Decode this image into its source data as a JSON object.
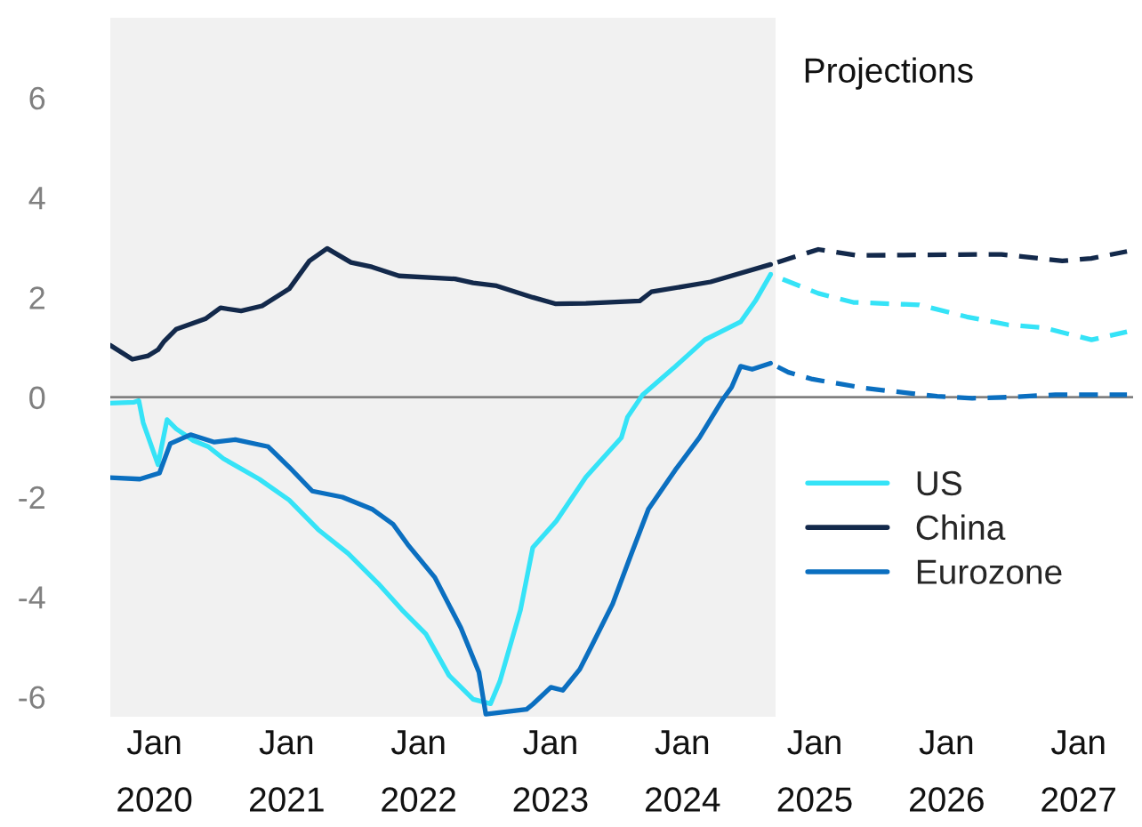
{
  "chart_data": {
    "type": "line",
    "xlim": [
      "2019-09-01",
      "2027-06-01"
    ],
    "xticks": [
      {
        "value": "2020-01-01",
        "label": "Jan\n2020"
      },
      {
        "value": "2021-01-01",
        "label": "Jan\n2021"
      },
      {
        "value": "2022-01-01",
        "label": "Jan\n2022"
      },
      {
        "value": "2023-01-01",
        "label": "Jan\n2023"
      },
      {
        "value": "2024-01-01",
        "label": "Jan\n2024"
      },
      {
        "value": "2025-01-01",
        "label": "Jan\n2025"
      },
      {
        "value": "2026-01-01",
        "label": "Jan\n2026"
      },
      {
        "value": "2027-01-01",
        "label": "Jan\n2027"
      }
    ],
    "ylim": [
      -6.4,
      7.6
    ],
    "yticks": [
      -6,
      -4,
      -2,
      0,
      2,
      4,
      6
    ],
    "series": [
      {
        "name": "US",
        "color": "#35e3f7",
        "line_style": "solid",
        "x": [
          "2019-09-01",
          "2019-11-06",
          "2019-11-19",
          "2019-12-01",
          "2020-01-11",
          "2020-02-05",
          "2020-03-01",
          "2020-04-18",
          "2020-05-29",
          "2020-07-10",
          "2020-10-17",
          "2021-01-08",
          "2021-03-29",
          "2021-06-20",
          "2021-09-11",
          "2021-11-16",
          "2022-01-21",
          "2022-03-26",
          "2022-06-01",
          "2022-07-19",
          "2022-08-14",
          "2022-10-10",
          "2022-11-13",
          "2023-01-17",
          "2023-04-09",
          "2023-07-16",
          "2023-08-02",
          "2023-09-13",
          "2023-12-07",
          "2024-03-03",
          "2024-06-10",
          "2024-07-21",
          "2024-09-01"
        ],
        "values": [
          -0.12,
          -0.1,
          -0.07,
          -0.51,
          -1.35,
          -0.45,
          -0.63,
          -0.87,
          -0.99,
          -1.23,
          -1.64,
          -2.06,
          -2.65,
          -3.13,
          -3.73,
          -4.26,
          -4.74,
          -5.57,
          -6.05,
          -6.14,
          -5.69,
          -4.26,
          -3.01,
          -2.48,
          -1.6,
          -0.81,
          -0.4,
          0.05,
          0.58,
          1.15,
          1.51,
          1.93,
          2.46
        ]
      },
      {
        "name": "China",
        "color": "#13294b",
        "line_style": "solid",
        "x": [
          "2019-09-01",
          "2019-11-01",
          "2019-12-15",
          "2020-01-11",
          "2020-01-28",
          "2020-03-01",
          "2020-05-21",
          "2020-07-02",
          "2020-08-28",
          "2020-10-25",
          "2021-01-08",
          "2021-03-05",
          "2021-04-23",
          "2021-06-28",
          "2021-08-25",
          "2021-11-08",
          "2022-04-12",
          "2022-06-01",
          "2022-08-05",
          "2022-11-13",
          "2023-01-16",
          "2023-04-09",
          "2023-09-05",
          "2023-10-07",
          "2024-03-19",
          "2024-09-01"
        ],
        "values": [
          1.04,
          0.76,
          0.83,
          0.95,
          1.12,
          1.36,
          1.57,
          1.79,
          1.73,
          1.83,
          2.17,
          2.73,
          2.98,
          2.7,
          2.61,
          2.43,
          2.37,
          2.29,
          2.23,
          2.0,
          1.87,
          1.88,
          1.93,
          2.11,
          2.31,
          2.66
        ]
      },
      {
        "name": "Eurozone",
        "color": "#0b6fc0",
        "line_style": "solid",
        "x": [
          "2019-09-01",
          "2019-11-22",
          "2020-01-15",
          "2020-02-14",
          "2020-04-10",
          "2020-06-15",
          "2020-08-12",
          "2020-11-11",
          "2021-01-08",
          "2021-03-13",
          "2021-06-04",
          "2021-08-25",
          "2021-10-22",
          "2021-12-02",
          "2022-02-15",
          "2022-04-28",
          "2022-06-17",
          "2022-07-06",
          "2022-10-27",
          "2022-11-13",
          "2023-01-02",
          "2023-02-04",
          "2023-03-23",
          "2023-04-25",
          "2023-06-22",
          "2023-08-10",
          "2023-09-29",
          "2023-12-12",
          "2024-02-17",
          "2024-04-22",
          "2024-05-16",
          "2024-06-10",
          "2024-07-12",
          "2024-09-01"
        ],
        "values": [
          -1.61,
          -1.64,
          -1.52,
          -0.93,
          -0.75,
          -0.9,
          -0.85,
          -0.99,
          -1.4,
          -1.88,
          -2.0,
          -2.24,
          -2.54,
          -2.95,
          -3.61,
          -4.62,
          -5.51,
          -6.35,
          -6.25,
          -6.15,
          -5.81,
          -5.87,
          -5.45,
          -4.98,
          -4.14,
          -3.19,
          -2.24,
          -1.46,
          -0.81,
          -0.04,
          0.2,
          0.62,
          0.56,
          0.68
        ]
      },
      {
        "color": "#35e3f7",
        "line_style": "dashed",
        "x": [
          "2024-09-01",
          "2025-01-11",
          "2025-04-18",
          "2025-10-17",
          "2026-02-26",
          "2026-06-20",
          "2026-09-28",
          "2027-02-06",
          "2027-05-15"
        ],
        "values": [
          2.46,
          2.08,
          1.9,
          1.85,
          1.61,
          1.45,
          1.39,
          1.15,
          1.31
        ]
      },
      {
        "color": "#13294b",
        "line_style": "dashed",
        "x": [
          "2024-09-01",
          "2025-01-11",
          "2025-04-28",
          "2026-04-13",
          "2026-06-02",
          "2026-11-17",
          "2027-02-05",
          "2027-05-15"
        ],
        "values": [
          2.66,
          2.96,
          2.84,
          2.86,
          2.86,
          2.73,
          2.78,
          2.92
        ]
      },
      {
        "color": "#0b6fc0",
        "line_style": "dashed",
        "x": [
          "2024-09-01",
          "2024-10-20",
          "2024-12-26",
          "2025-05-21",
          "2025-12-06",
          "2026-03-13",
          "2026-06-20",
          "2026-10-29",
          "2027-05-15"
        ],
        "values": [
          0.68,
          0.5,
          0.36,
          0.18,
          0.02,
          -0.02,
          0.0,
          0.05,
          0.05
        ]
      }
    ],
    "ref_lines": [
      {
        "axis": "y",
        "value": 0,
        "color": "#808080"
      }
    ],
    "bands": [
      {
        "axis": "x",
        "from": "2019-09-01",
        "to": "2024-09-15",
        "color": "#f1f1f1"
      }
    ],
    "annotations": [
      "Projections"
    ],
    "legend": "lower right"
  }
}
